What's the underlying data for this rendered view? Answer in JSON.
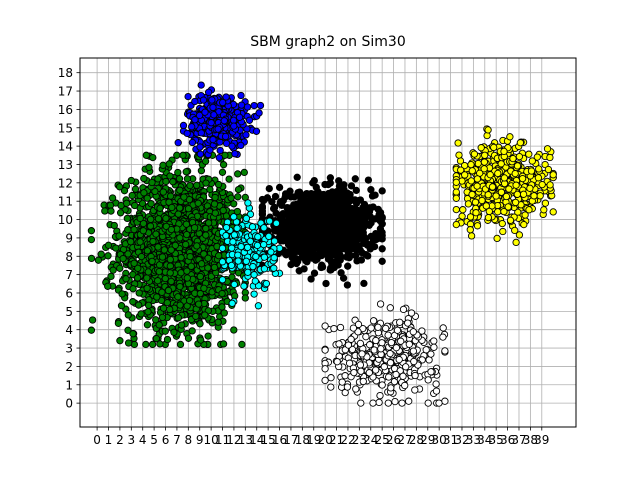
{
  "chart_data": {
    "type": "scatter",
    "title": "SBM graph2 on Sim30",
    "xlabel": "",
    "ylabel": "",
    "xlim": [
      -1.5,
      42
    ],
    "ylim": [
      -1.3,
      18.8
    ],
    "x_ticks": [
      0,
      1,
      2,
      3,
      4,
      5,
      6,
      7,
      8,
      9,
      10,
      11,
      12,
      13,
      14,
      15,
      16,
      17,
      18,
      19,
      20,
      21,
      22,
      23,
      24,
      25,
      26,
      27,
      28,
      29,
      30,
      31,
      32,
      33,
      34,
      35,
      36,
      37,
      38,
      39
    ],
    "y_ticks": [
      0,
      1,
      2,
      3,
      4,
      5,
      6,
      7,
      8,
      9,
      10,
      11,
      12,
      13,
      14,
      15,
      16,
      17,
      18
    ],
    "grid": true,
    "marker_edge_color": "#000000",
    "series": [
      {
        "color": "#008000",
        "center": [
          7.3,
          8.4
        ],
        "spread": [
          2.6,
          2.1
        ],
        "count": 1800,
        "x_range": [
          -0.5,
          13
        ],
        "y_range": [
          3.2,
          13.5
        ]
      },
      {
        "color": "#0000ff",
        "center": [
          10.6,
          15.4
        ],
        "spread": [
          1.3,
          0.7
        ],
        "count": 450,
        "x_range": [
          6.5,
          15
        ],
        "y_range": [
          12.5,
          18.1
        ]
      },
      {
        "color": "#000000",
        "center": [
          19.6,
          9.6
        ],
        "spread": [
          2.3,
          0.9
        ],
        "count": 1200,
        "x_range": [
          14.5,
          25
        ],
        "y_range": [
          6.2,
          12.3
        ]
      },
      {
        "color": "#00ffff",
        "center": [
          13.4,
          8.2
        ],
        "spread": [
          1.1,
          1.0
        ],
        "count": 220,
        "x_range": [
          11,
          16
        ],
        "y_range": [
          5.3,
          11.1
        ]
      },
      {
        "color": "#ffff00",
        "center": [
          35.5,
          11.9
        ],
        "spread": [
          2.1,
          1.1
        ],
        "count": 500,
        "x_range": [
          31.5,
          40
        ],
        "y_range": [
          7.6,
          15.3
        ]
      },
      {
        "color": "#ffffff",
        "center": [
          25.2,
          2.6
        ],
        "spread": [
          2.4,
          1.0
        ],
        "count": 400,
        "x_range": [
          20,
          30.5
        ],
        "y_range": [
          0,
          5.4
        ]
      }
    ]
  }
}
